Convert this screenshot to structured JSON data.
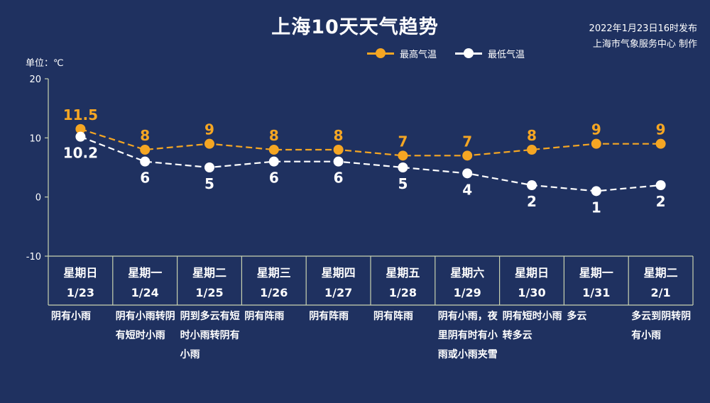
{
  "title": "上海10天天气趋势",
  "issue_time": "2022年1月23日16时发布",
  "issuer": "上海市气象服务中心 制作",
  "unit_label": "单位：℃",
  "colors": {
    "background": "#1f3160",
    "high": "#f5a623",
    "low": "#ffffff",
    "axis": "#c9d2b0"
  },
  "legend": {
    "high": "最高气温",
    "low": "最低气温"
  },
  "chart_data": {
    "type": "line",
    "title": "上海10天天气趋势",
    "ylabel": "单位：℃",
    "ylim": [
      -10,
      20
    ],
    "yticks": [
      "20",
      "10",
      "0",
      "-10"
    ],
    "ytick_values": [
      20,
      10,
      0,
      -10
    ],
    "grid": false,
    "legend_position": "top-right",
    "categories": [
      {
        "weekday": "星期日",
        "date": "1/23"
      },
      {
        "weekday": "星期一",
        "date": "1/24"
      },
      {
        "weekday": "星期二",
        "date": "1/25"
      },
      {
        "weekday": "星期三",
        "date": "1/26"
      },
      {
        "weekday": "星期四",
        "date": "1/27"
      },
      {
        "weekday": "星期五",
        "date": "1/28"
      },
      {
        "weekday": "星期六",
        "date": "1/29"
      },
      {
        "weekday": "星期日",
        "date": "1/30"
      },
      {
        "weekday": "星期一",
        "date": "1/31"
      },
      {
        "weekday": "星期二",
        "date": "2/1"
      }
    ],
    "series": [
      {
        "name": "最高气温",
        "values": [
          11.5,
          8,
          9,
          8,
          8,
          7,
          7,
          8,
          9,
          9
        ],
        "labels": [
          "11.5",
          "8",
          "9",
          "8",
          "8",
          "7",
          "7",
          "8",
          "9",
          "9"
        ]
      },
      {
        "name": "最低气温",
        "values": [
          10.2,
          6,
          5,
          6,
          6,
          5,
          4,
          2,
          1,
          2
        ],
        "labels": [
          "10.2",
          "6",
          "5",
          "6",
          "6",
          "5",
          "4",
          "2",
          "1",
          "2"
        ]
      }
    ]
  },
  "weather": [
    "阴有小雨",
    "阴有小雨转阴有短时小雨",
    "阴到多云有短时小雨转阴有小雨",
    "阴有阵雨",
    "阴有阵雨",
    "阴有阵雨",
    "阴有小雨，夜里阴有时有小雨或小雨夹雪",
    "阴有短时小雨转多云",
    "多云",
    "多云到阴转阴有小雨"
  ]
}
